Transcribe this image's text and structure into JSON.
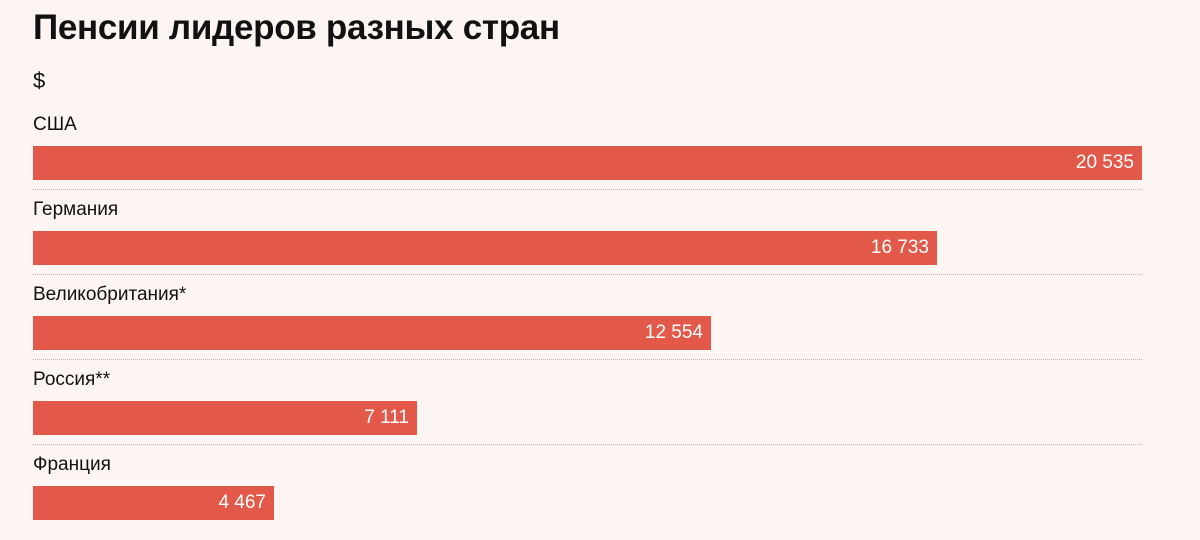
{
  "chart_data": {
    "type": "bar",
    "orientation": "horizontal",
    "title": "Пенсии лидеров разных стран",
    "unit": "$",
    "categories": [
      "США",
      "Германия",
      "Великобритания*",
      "Россия**",
      "Франция"
    ],
    "values": [
      20535,
      16733,
      12554,
      7111,
      4467
    ],
    "value_labels": [
      "20 535",
      "16 733",
      "12 554",
      "7 111",
      "4 467"
    ],
    "xlim": [
      0,
      20535
    ],
    "bar_color": "#e2594a",
    "grid": false,
    "legend": "none"
  }
}
